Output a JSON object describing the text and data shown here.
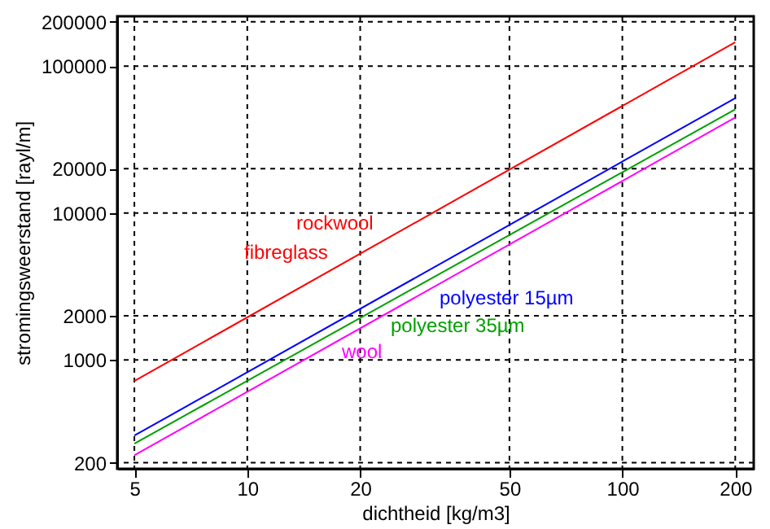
{
  "chart_data": {
    "type": "line",
    "xlabel": "dichtheid [kg/m3]",
    "ylabel": "stromingsweerstand  [rayl/m]",
    "log": "xy",
    "grid": true,
    "marker": "none",
    "line_style": "solid",
    "xlim": [
      4.5,
      224
    ],
    "xticks": [
      5,
      10,
      20,
      50,
      100,
      200
    ],
    "ylim": [
      182,
      218000
    ],
    "yticks": [
      200,
      1000,
      2000,
      10000,
      20000,
      100000,
      200000
    ],
    "x": [
      5,
      200
    ],
    "series": [
      {
        "name": "rockwool\nfibreglass",
        "color": "#ff0000",
        "values": [
          720,
          145000
        ]
      },
      {
        "name": "polyester 15µm",
        "color": "#0000ff",
        "values": [
          306,
          60500
        ]
      },
      {
        "name": "polyester 35µm",
        "color": "#00a000",
        "values": [
          270,
          50700
        ]
      },
      {
        "name": "wool",
        "color": "#ff00ff",
        "values": [
          225,
          44600
        ]
      }
    ]
  }
}
